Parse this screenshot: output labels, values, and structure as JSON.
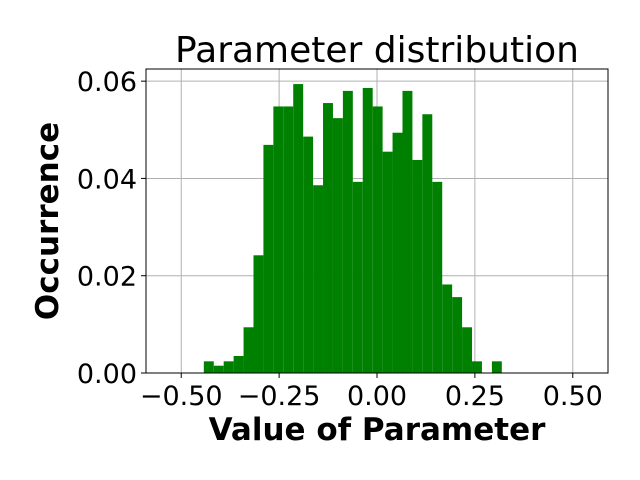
{
  "chart_data": {
    "type": "bar",
    "subtype": "histogram",
    "title": "Parameter distribution",
    "xlabel": "Value of Parameter",
    "ylabel": "Occurrence",
    "xlim": [
      -0.59,
      0.59
    ],
    "ylim": [
      0.0,
      0.0625
    ],
    "xticks": [
      -0.5,
      -0.25,
      0.0,
      0.25,
      0.5
    ],
    "xtick_labels": [
      "−0.50",
      "−0.25",
      "0.00",
      "0.25",
      "0.50"
    ],
    "yticks": [
      0.0,
      0.02,
      0.04,
      0.06
    ],
    "ytick_labels": [
      "0.00",
      "0.02",
      "0.04",
      "0.06"
    ],
    "grid": true,
    "bar_color": "#008000",
    "bin_start": -0.4423,
    "bin_width": 0.02537,
    "values": [
      0.0024,
      0.0015,
      0.0024,
      0.0035,
      0.0094,
      0.0242,
      0.0469,
      0.0548,
      0.0548,
      0.0594,
      0.0486,
      0.0386,
      0.0555,
      0.0524,
      0.058,
      0.0393,
      0.0586,
      0.0548,
      0.0455,
      0.0494,
      0.058,
      0.0438,
      0.0532,
      0.0393,
      0.0182,
      0.0156,
      0.0094,
      0.0024,
      0.0,
      0.0024
    ]
  }
}
